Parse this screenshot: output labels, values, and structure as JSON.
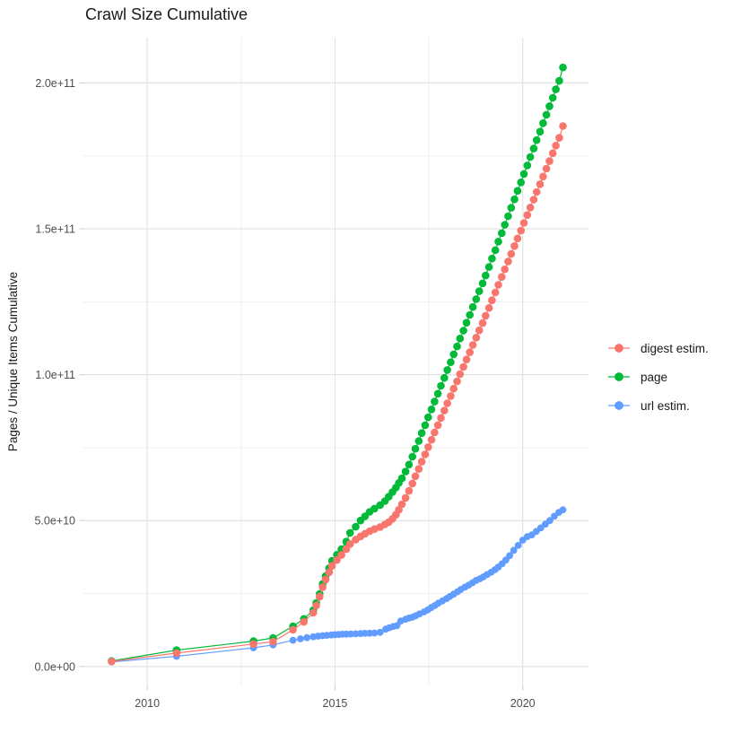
{
  "chart_data": {
    "type": "line",
    "title": "Crawl Size Cumulative",
    "xlabel": "",
    "ylabel": "Pages / Unique Items Cumulative",
    "legend_position": "right",
    "grid": true,
    "values_scale": "values are billions (1e9) of pages / unique items",
    "xlim": [
      2008.3,
      2021.75
    ],
    "ylim_billions": [
      -6.5,
      215.5
    ],
    "x_ticks": [
      {
        "label": "2010",
        "year": 2010
      },
      {
        "label": "2015",
        "year": 2015
      },
      {
        "label": "2020",
        "year": 2020
      }
    ],
    "x_minor": [
      2012.5,
      2017.5
    ],
    "y_ticks": [
      {
        "label": "0.0e+00",
        "value": 0
      },
      {
        "label": "5.0e+10",
        "value": 50
      },
      {
        "label": "1.0e+11",
        "value": 100
      },
      {
        "label": "1.5e+11",
        "value": 150
      },
      {
        "label": "2.0e+11",
        "value": 200
      }
    ],
    "y_minor": [
      25,
      75,
      125,
      175
    ],
    "series": [
      {
        "name": "digest estim.",
        "color": "#F8766D",
        "points": [
          [
            2009.05,
            1.75
          ],
          [
            2010.78,
            4.6
          ],
          [
            2012.83,
            7.7
          ],
          [
            2013.35,
            8.5
          ],
          [
            2013.88,
            12.6
          ],
          [
            2014.17,
            15.3
          ],
          [
            2014.42,
            18.4
          ],
          [
            2014.5,
            20.9
          ],
          [
            2014.59,
            23.9
          ],
          [
            2014.67,
            27.2
          ],
          [
            2014.75,
            29.8
          ],
          [
            2014.84,
            32.3
          ],
          [
            2014.92,
            34.5
          ],
          [
            2015.05,
            36.5
          ],
          [
            2015.17,
            38.2
          ],
          [
            2015.3,
            40.2
          ],
          [
            2015.4,
            42.0
          ],
          [
            2015.55,
            43.5
          ],
          [
            2015.68,
            44.6
          ],
          [
            2015.8,
            45.5
          ],
          [
            2015.92,
            46.4
          ],
          [
            2016.05,
            47.1
          ],
          [
            2016.2,
            47.8
          ],
          [
            2016.33,
            48.7
          ],
          [
            2016.43,
            49.5
          ],
          [
            2016.53,
            50.6
          ],
          [
            2016.62,
            52.0
          ],
          [
            2016.7,
            53.7
          ],
          [
            2016.78,
            55.6
          ],
          [
            2016.88,
            57.8
          ],
          [
            2016.97,
            60.2
          ],
          [
            2017.06,
            62.7
          ],
          [
            2017.14,
            65.2
          ],
          [
            2017.23,
            67.7
          ],
          [
            2017.31,
            70.2
          ],
          [
            2017.4,
            72.7
          ],
          [
            2017.48,
            75.2
          ],
          [
            2017.57,
            77.7
          ],
          [
            2017.65,
            80.2
          ],
          [
            2017.74,
            82.7
          ],
          [
            2017.82,
            85.2
          ],
          [
            2017.91,
            87.7
          ],
          [
            2017.99,
            90.2
          ],
          [
            2018.08,
            92.7
          ],
          [
            2018.16,
            95.2
          ],
          [
            2018.25,
            97.7
          ],
          [
            2018.33,
            100.2
          ],
          [
            2018.42,
            102.7
          ],
          [
            2018.5,
            105.2
          ],
          [
            2018.59,
            107.7
          ],
          [
            2018.67,
            110.2
          ],
          [
            2018.76,
            112.7
          ],
          [
            2018.84,
            115.2
          ],
          [
            2018.93,
            117.7
          ],
          [
            2019.01,
            120.2
          ],
          [
            2019.1,
            122.9
          ],
          [
            2019.18,
            125.5
          ],
          [
            2019.27,
            128.2
          ],
          [
            2019.35,
            130.8
          ],
          [
            2019.44,
            133.5
          ],
          [
            2019.52,
            136.1
          ],
          [
            2019.61,
            138.8
          ],
          [
            2019.69,
            141.4
          ],
          [
            2019.78,
            144.1
          ],
          [
            2019.86,
            146.7
          ],
          [
            2019.95,
            149.4
          ],
          [
            2020.03,
            152.0
          ],
          [
            2020.12,
            154.7
          ],
          [
            2020.2,
            157.3
          ],
          [
            2020.29,
            160.0
          ],
          [
            2020.37,
            162.6
          ],
          [
            2020.46,
            165.3
          ],
          [
            2020.54,
            167.9
          ],
          [
            2020.63,
            170.6
          ],
          [
            2020.71,
            173.2
          ],
          [
            2020.8,
            175.9
          ],
          [
            2020.88,
            178.5
          ],
          [
            2020.97,
            181.2
          ],
          [
            2021.07,
            185.2
          ]
        ]
      },
      {
        "name": "page",
        "color": "#00BA38",
        "points": [
          [
            2009.05,
            1.9
          ],
          [
            2010.78,
            5.6
          ],
          [
            2012.83,
            8.7
          ],
          [
            2013.35,
            9.8
          ],
          [
            2013.88,
            13.8
          ],
          [
            2014.17,
            16.3
          ],
          [
            2014.42,
            19.3
          ],
          [
            2014.5,
            21.8
          ],
          [
            2014.59,
            24.9
          ],
          [
            2014.67,
            28.3
          ],
          [
            2014.75,
            31.0
          ],
          [
            2014.84,
            33.7
          ],
          [
            2014.92,
            36.2
          ],
          [
            2015.05,
            38.3
          ],
          [
            2015.17,
            40.2
          ],
          [
            2015.3,
            42.8
          ],
          [
            2015.4,
            45.8
          ],
          [
            2015.55,
            47.9
          ],
          [
            2015.68,
            50.0
          ],
          [
            2015.8,
            51.5
          ],
          [
            2015.92,
            53.0
          ],
          [
            2016.05,
            54.1
          ],
          [
            2016.2,
            55.3
          ],
          [
            2016.33,
            56.7
          ],
          [
            2016.43,
            58.2
          ],
          [
            2016.53,
            59.8
          ],
          [
            2016.62,
            61.3
          ],
          [
            2016.7,
            62.9
          ],
          [
            2016.78,
            64.5
          ],
          [
            2016.88,
            66.8
          ],
          [
            2016.97,
            69.2
          ],
          [
            2017.06,
            71.9
          ],
          [
            2017.14,
            74.6
          ],
          [
            2017.23,
            77.3
          ],
          [
            2017.31,
            80.0
          ],
          [
            2017.4,
            82.7
          ],
          [
            2017.48,
            85.4
          ],
          [
            2017.57,
            88.1
          ],
          [
            2017.65,
            90.8
          ],
          [
            2017.74,
            93.5
          ],
          [
            2017.82,
            96.2
          ],
          [
            2017.91,
            98.9
          ],
          [
            2017.99,
            101.6
          ],
          [
            2018.08,
            104.3
          ],
          [
            2018.16,
            107.0
          ],
          [
            2018.25,
            109.7
          ],
          [
            2018.33,
            112.4
          ],
          [
            2018.42,
            115.1
          ],
          [
            2018.5,
            117.8
          ],
          [
            2018.59,
            120.5
          ],
          [
            2018.67,
            123.2
          ],
          [
            2018.76,
            125.9
          ],
          [
            2018.84,
            128.6
          ],
          [
            2018.93,
            131.3
          ],
          [
            2019.01,
            134.0
          ],
          [
            2019.1,
            136.9
          ],
          [
            2019.18,
            139.8
          ],
          [
            2019.27,
            142.7
          ],
          [
            2019.35,
            145.6
          ],
          [
            2019.44,
            148.5
          ],
          [
            2019.52,
            151.4
          ],
          [
            2019.61,
            154.3
          ],
          [
            2019.69,
            157.2
          ],
          [
            2019.78,
            160.1
          ],
          [
            2019.86,
            163.0
          ],
          [
            2019.95,
            165.9
          ],
          [
            2020.03,
            168.8
          ],
          [
            2020.12,
            171.7
          ],
          [
            2020.2,
            174.6
          ],
          [
            2020.29,
            177.5
          ],
          [
            2020.37,
            180.4
          ],
          [
            2020.46,
            183.3
          ],
          [
            2020.54,
            186.2
          ],
          [
            2020.63,
            189.1
          ],
          [
            2020.71,
            192.0
          ],
          [
            2020.8,
            194.9
          ],
          [
            2020.88,
            197.8
          ],
          [
            2020.97,
            200.7
          ],
          [
            2021.07,
            205.3
          ]
        ]
      },
      {
        "name": "url estim.",
        "color": "#619CFF",
        "points": [
          [
            2009.05,
            1.55
          ],
          [
            2010.78,
            3.5
          ],
          [
            2012.83,
            6.4
          ],
          [
            2013.35,
            7.4
          ],
          [
            2013.88,
            9.0
          ],
          [
            2014.08,
            9.5
          ],
          [
            2014.25,
            9.9
          ],
          [
            2014.42,
            10.2
          ],
          [
            2014.55,
            10.4
          ],
          [
            2014.67,
            10.55
          ],
          [
            2014.78,
            10.7
          ],
          [
            2014.9,
            10.8
          ],
          [
            2015.0,
            10.9
          ],
          [
            2015.1,
            11.0
          ],
          [
            2015.2,
            11.05
          ],
          [
            2015.3,
            11.1
          ],
          [
            2015.42,
            11.15
          ],
          [
            2015.55,
            11.2
          ],
          [
            2015.68,
            11.3
          ],
          [
            2015.8,
            11.35
          ],
          [
            2015.92,
            11.4
          ],
          [
            2016.05,
            11.5
          ],
          [
            2016.2,
            11.7
          ],
          [
            2016.35,
            12.8
          ],
          [
            2016.45,
            13.3
          ],
          [
            2016.55,
            13.7
          ],
          [
            2016.65,
            14.0
          ],
          [
            2016.75,
            15.6
          ],
          [
            2016.88,
            16.2
          ],
          [
            2016.97,
            16.6
          ],
          [
            2017.06,
            16.9
          ],
          [
            2017.15,
            17.4
          ],
          [
            2017.25,
            18.0
          ],
          [
            2017.37,
            18.7
          ],
          [
            2017.47,
            19.4
          ],
          [
            2017.56,
            20.2
          ],
          [
            2017.66,
            20.9
          ],
          [
            2017.75,
            21.7
          ],
          [
            2017.86,
            22.5
          ],
          [
            2017.97,
            23.3
          ],
          [
            2018.06,
            24.0
          ],
          [
            2018.16,
            24.8
          ],
          [
            2018.26,
            25.6
          ],
          [
            2018.35,
            26.4
          ],
          [
            2018.46,
            27.2
          ],
          [
            2018.56,
            27.9
          ],
          [
            2018.66,
            28.7
          ],
          [
            2018.76,
            29.5
          ],
          [
            2018.86,
            30.1
          ],
          [
            2018.95,
            30.7
          ],
          [
            2019.05,
            31.5
          ],
          [
            2019.16,
            32.3
          ],
          [
            2019.26,
            33.2
          ],
          [
            2019.35,
            34.1
          ],
          [
            2019.45,
            35.2
          ],
          [
            2019.55,
            36.5
          ],
          [
            2019.65,
            38.0
          ],
          [
            2019.76,
            39.8
          ],
          [
            2019.88,
            41.5
          ],
          [
            2020.0,
            43.3
          ],
          [
            2020.12,
            44.5
          ],
          [
            2020.24,
            45.1
          ],
          [
            2020.36,
            46.3
          ],
          [
            2020.48,
            47.5
          ],
          [
            2020.6,
            48.8
          ],
          [
            2020.72,
            50.0
          ],
          [
            2020.84,
            51.5
          ],
          [
            2020.96,
            52.8
          ],
          [
            2021.07,
            53.7
          ]
        ]
      }
    ]
  }
}
